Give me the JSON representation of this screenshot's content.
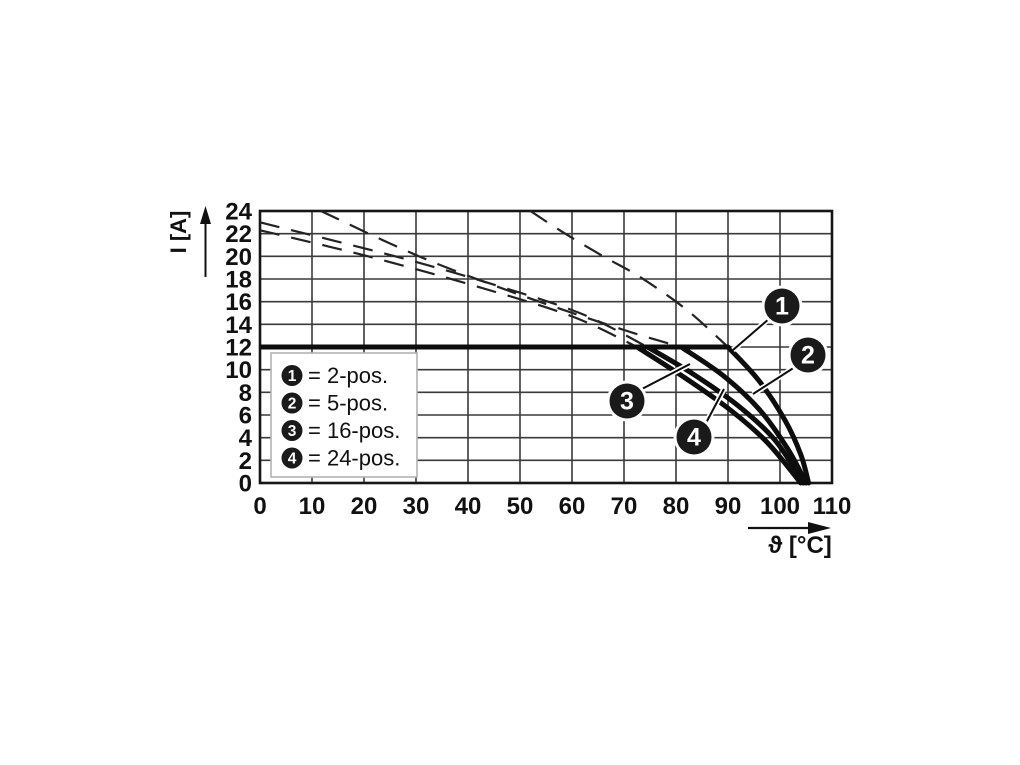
{
  "figure": {
    "background": "#ffffff",
    "description": "Current derating curves for plug connectors"
  },
  "chart_data": {
    "type": "line",
    "title": "",
    "xlabel": "ϑ [°C]",
    "ylabel": "I [A]",
    "xlim": [
      0,
      110
    ],
    "ylim": [
      0,
      24
    ],
    "xticks": [
      0,
      10,
      20,
      30,
      40,
      50,
      60,
      70,
      80,
      90,
      100,
      110
    ],
    "yticks": [
      0,
      2,
      4,
      6,
      8,
      10,
      12,
      14,
      16,
      18,
      20,
      22,
      24
    ],
    "grid": true,
    "legend_position": "bottom-left",
    "rated_current_limit_A": 12,
    "series": [
      {
        "name": "2-pos.",
        "callout": "1",
        "dashed_above_limit": [
          [
            52,
            24
          ],
          [
            58,
            22.2
          ],
          [
            66,
            20
          ],
          [
            73,
            18.2
          ],
          [
            82,
            15.3
          ],
          [
            90,
            12
          ]
        ],
        "solid_below_limit": [
          [
            90,
            12
          ],
          [
            96,
            9
          ],
          [
            101,
            5.5
          ],
          [
            104,
            2.5
          ],
          [
            105.5,
            0
          ]
        ]
      },
      {
        "name": "5-pos.",
        "callout": "2",
        "dashed_above_limit": [
          [
            11.7,
            24
          ],
          [
            30.6,
            20
          ],
          [
            50,
            16.6
          ],
          [
            70,
            13.5
          ],
          [
            81,
            12
          ]
        ],
        "solid_below_limit": [
          [
            81,
            12
          ],
          [
            89,
            9.5
          ],
          [
            96,
            6.5
          ],
          [
            101.5,
            3
          ],
          [
            105,
            0
          ]
        ]
      },
      {
        "name": "16-pos.",
        "callout": "3",
        "dashed_above_limit": [
          [
            0,
            23
          ],
          [
            26,
            20
          ],
          [
            45,
            17.5
          ],
          [
            62,
            14.9
          ],
          [
            74.5,
            12
          ]
        ],
        "solid_below_limit": [
          [
            74.5,
            12
          ],
          [
            83,
            9.7
          ],
          [
            92,
            6.8
          ],
          [
            99,
            3.8
          ],
          [
            104.5,
            0
          ]
        ]
      },
      {
        "name": "24-pos.",
        "callout": "4",
        "dashed_above_limit": [
          [
            0,
            22.3
          ],
          [
            20.8,
            20
          ],
          [
            42,
            17.3
          ],
          [
            60,
            14.7
          ],
          [
            72.5,
            12
          ]
        ],
        "solid_below_limit": [
          [
            72.5,
            12
          ],
          [
            81,
            9.5
          ],
          [
            90,
            6.6
          ],
          [
            97.5,
            3.6
          ],
          [
            104,
            0
          ]
        ]
      }
    ],
    "limit_line": {
      "value_A": 12,
      "from_deg_C": 0,
      "to_deg_C": 90
    },
    "legend": {
      "items": [
        {
          "marker": "1",
          "label": "= 2-pos."
        },
        {
          "marker": "2",
          "label": "= 5-pos."
        },
        {
          "marker": "3",
          "label": "= 16-pos."
        },
        {
          "marker": "4",
          "label": "= 24-pos."
        }
      ]
    },
    "callouts": [
      {
        "num": "1"
      },
      {
        "num": "2"
      },
      {
        "num": "3"
      },
      {
        "num": "4"
      }
    ]
  },
  "colors": {
    "curve": "#0d0d0d",
    "dashed_curve": "#232323",
    "grid": "#3a3a3a",
    "border": "#161616",
    "text": "#111111",
    "legend_border": "#b3b3b3",
    "legend_bg": "#ffffff",
    "callout_fill": "#1a1a1a",
    "callout_text": "#ffffff"
  }
}
